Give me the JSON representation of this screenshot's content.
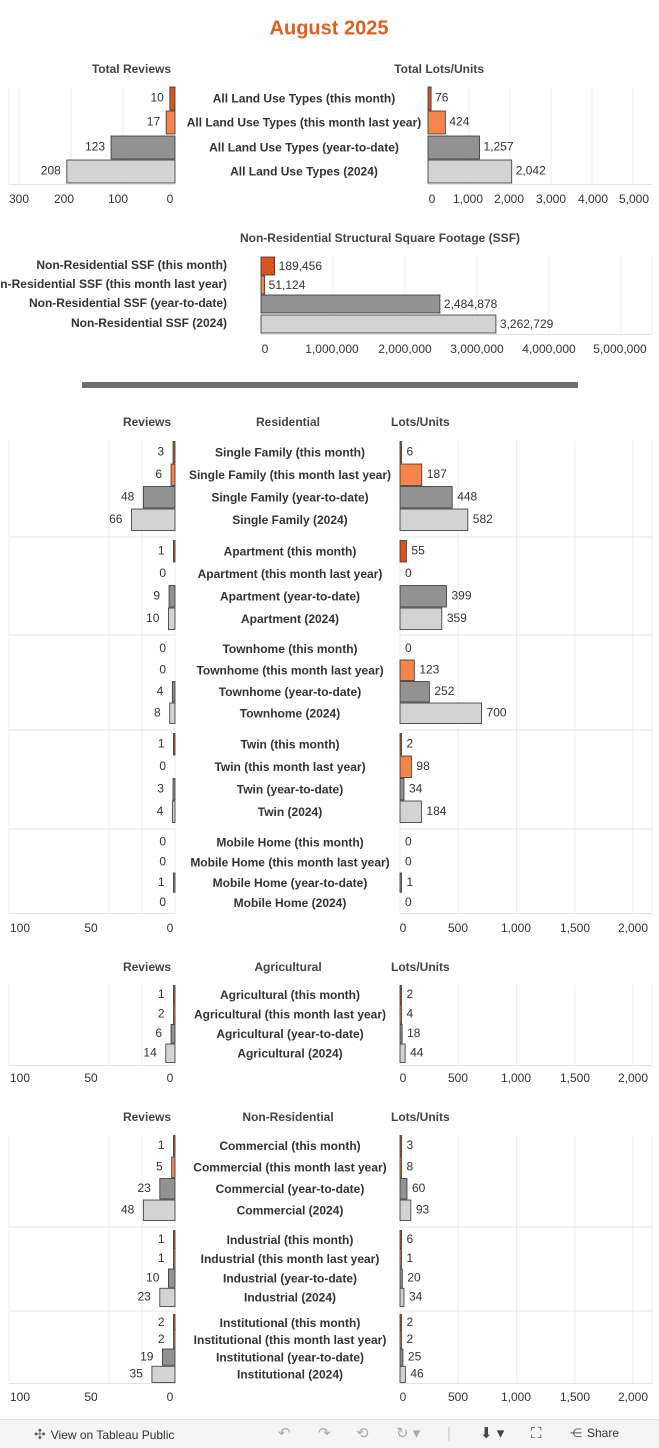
{
  "title": "August 2025",
  "colors": {
    "this_month": "#d9531e",
    "last_year_month": "#f4844c",
    "ytd": "#929292",
    "prior_year": "#d3d3d3",
    "title": "#e06020",
    "grid": "#eeeeee"
  },
  "chart_data": [
    {
      "type": "bar",
      "id": "totals",
      "orientation": "horizontal",
      "left_title": "Total Reviews",
      "right_title": "Total Lots/Units",
      "categories": [
        "All Land Use Types (this month)",
        "All Land Use Types (this month last year)",
        "All Land Use Types (year-to-date)",
        "All Land Use Types (2024)"
      ],
      "reviews": [
        10,
        17,
        123,
        208
      ],
      "units": [
        76,
        424,
        1257,
        2042
      ],
      "reviews_labels": [
        "10",
        "17",
        "123",
        "208"
      ],
      "units_labels": [
        "76",
        "424",
        "1,257",
        "2,042"
      ],
      "reviews_xlim": [
        0,
        300
      ],
      "units_xlim": [
        0,
        5000
      ],
      "reviews_ticks": [
        "300",
        "200",
        "100",
        "0"
      ],
      "units_ticks": [
        "0",
        "1,000",
        "2,000",
        "3,000",
        "4,000",
        "5,000"
      ]
    },
    {
      "type": "bar",
      "id": "ssf",
      "orientation": "horizontal",
      "title": "Non-Residential Structural Square Footage (SSF)",
      "categories": [
        "Non-Residential SSF (this month)",
        "Non-Residential SSF (this month last year)",
        "Non-Residential SSF (year-to-date)",
        "Non-Residential SSF (2024)"
      ],
      "values": [
        189456,
        51124,
        2484878,
        3262729
      ],
      "labels": [
        "189,456",
        "51,124",
        "2,484,878",
        "3,262,729"
      ],
      "xlim": [
        0,
        5000000
      ],
      "ticks": [
        "0",
        "1,000,000",
        "2,000,000",
        "3,000,000",
        "4,000,000",
        "5,000,000"
      ]
    },
    {
      "type": "bar",
      "id": "residential",
      "orientation": "horizontal",
      "header_left": "Reviews",
      "header_mid": "Residential",
      "header_right": "Lots/Units",
      "reviews_xlim": [
        0,
        100
      ],
      "units_xlim": [
        0,
        2000
      ],
      "reviews_ticks": [
        "100",
        "50",
        "0"
      ],
      "units_ticks": [
        "0",
        "500",
        "1,000",
        "1,500",
        "2,000"
      ],
      "groups": [
        {
          "categories": [
            "Single Family (this month)",
            "Single Family (this month last year)",
            "Single Family (year-to-date)",
            "Single Family (2024)"
          ],
          "reviews": [
            3,
            6,
            48,
            66
          ],
          "units": [
            6,
            187,
            448,
            582
          ],
          "units_labels": [
            "6",
            "187",
            "448",
            "582"
          ]
        },
        {
          "categories": [
            "Apartment (this month)",
            "Apartment (this month last year)",
            "Apartment (year-to-date)",
            "Apartment (2024)"
          ],
          "reviews": [
            1,
            0,
            9,
            10
          ],
          "units": [
            55,
            0,
            399,
            359
          ],
          "units_labels": [
            "55",
            "0",
            "399",
            "359"
          ]
        },
        {
          "categories": [
            "Townhome (this month)",
            "Townhome (this month last year)",
            "Townhome (year-to-date)",
            "Townhome (2024)"
          ],
          "reviews": [
            0,
            0,
            4,
            8
          ],
          "units": [
            0,
            123,
            252,
            700
          ],
          "units_labels": [
            "0",
            "123",
            "252",
            "700"
          ]
        },
        {
          "categories": [
            "Twin (this month)",
            "Twin (this month last year)",
            "Twin (year-to-date)",
            "Twin (2024)"
          ],
          "reviews": [
            1,
            0,
            3,
            4
          ],
          "units": [
            2,
            98,
            34,
            184
          ],
          "units_labels": [
            "2",
            "98",
            "34",
            "184"
          ]
        },
        {
          "categories": [
            "Mobile Home (this month)",
            "Mobile Home (this month last year)",
            "Mobile Home (year-to-date)",
            "Mobile Home (2024)"
          ],
          "reviews": [
            0,
            0,
            1,
            0
          ],
          "units": [
            0,
            0,
            1,
            0
          ],
          "units_labels": [
            "0",
            "0",
            "1",
            "0"
          ]
        }
      ]
    },
    {
      "type": "bar",
      "id": "agricultural",
      "orientation": "horizontal",
      "header_left": "Reviews",
      "header_mid": "Agricultural",
      "header_right": "Lots/Units",
      "reviews_xlim": [
        0,
        100
      ],
      "units_xlim": [
        0,
        2000
      ],
      "reviews_ticks": [
        "100",
        "50",
        "0"
      ],
      "units_ticks": [
        "0",
        "500",
        "1,000",
        "1,500",
        "2,000"
      ],
      "groups": [
        {
          "categories": [
            "Agricultural (this month)",
            "Agricultural (this month last year)",
            "Agricultural (year-to-date)",
            "Agricultural (2024)"
          ],
          "reviews": [
            1,
            2,
            6,
            14
          ],
          "units": [
            2,
            4,
            18,
            44
          ],
          "units_labels": [
            "2",
            "4",
            "18",
            "44"
          ]
        }
      ]
    },
    {
      "type": "bar",
      "id": "nonresidential",
      "orientation": "horizontal",
      "header_left": "Reviews",
      "header_mid": "Non-Residential",
      "header_right": "Lots/Units",
      "reviews_xlim": [
        0,
        100
      ],
      "units_xlim": [
        0,
        2000
      ],
      "reviews_ticks": [
        "100",
        "50",
        "0"
      ],
      "units_ticks": [
        "0",
        "500",
        "1,000",
        "1,500",
        "2,000"
      ],
      "groups": [
        {
          "categories": [
            "Commercial (this month)",
            "Commercial (this month last year)",
            "Commercial (year-to-date)",
            "Commercial (2024)"
          ],
          "reviews": [
            1,
            5,
            23,
            48
          ],
          "units": [
            3,
            8,
            60,
            93
          ],
          "units_labels": [
            "3",
            "8",
            "60",
            "93"
          ]
        },
        {
          "categories": [
            "Industrial (this month)",
            "Industrial (this month last year)",
            "Industrial (year-to-date)",
            "Industrial (2024)"
          ],
          "reviews": [
            1,
            1,
            10,
            23
          ],
          "units": [
            6,
            1,
            20,
            34
          ],
          "units_labels": [
            "6",
            "1",
            "20",
            "34"
          ]
        },
        {
          "categories": [
            "Institutional (this month)",
            "Institutional (this month last year)",
            "Institutional (year-to-date)",
            "Institutional (2024)"
          ],
          "reviews": [
            2,
            2,
            19,
            35
          ],
          "units": [
            2,
            2,
            25,
            46
          ],
          "units_labels": [
            "2",
            "2",
            "25",
            "46"
          ]
        }
      ]
    }
  ],
  "toolbar": {
    "view_label": "View on Tableau Public",
    "share_label": "Share",
    "icons": [
      "tableau-logo-icon",
      "undo-icon",
      "redo-icon",
      "revert-icon",
      "refresh-icon",
      "pause-icon",
      "download-icon",
      "fullscreen-icon",
      "share-icon"
    ]
  }
}
